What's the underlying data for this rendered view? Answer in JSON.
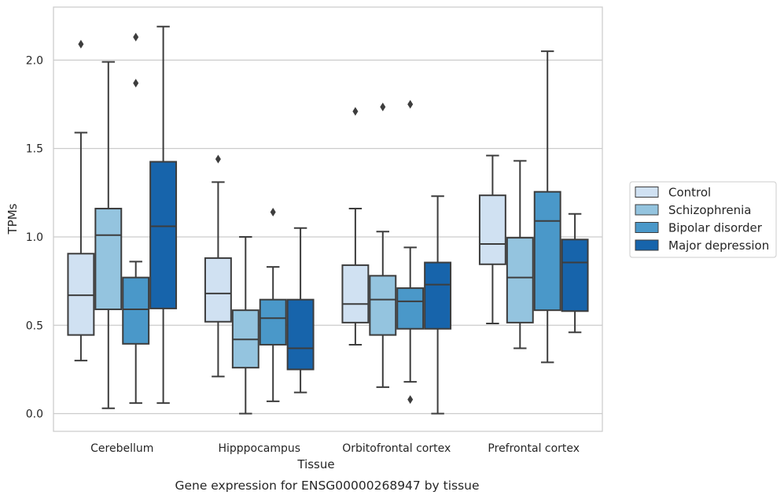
{
  "caption": "Gene expression for ENSG00000268947 by tissue",
  "chart_data": {
    "type": "box",
    "title": "",
    "xlabel": "Tissue",
    "ylabel": "TPMs",
    "ylim": [
      -0.1,
      2.3
    ],
    "yticks": [
      "0.0",
      "0.5",
      "1.0",
      "1.5",
      "2.0"
    ],
    "grid": "horizontal",
    "legend_position": "right",
    "categories": [
      "Cerebellum",
      "Hipppocampus",
      "Orbitofrontal cortex",
      "Prefrontal cortex"
    ],
    "series": [
      {
        "name": "Control",
        "color": "#d0e1f2",
        "boxes": [
          {
            "whisker_low": 0.3,
            "q1": 0.445,
            "median": 0.67,
            "q3": 0.905,
            "whisker_high": 1.59,
            "outliers": [
              2.09
            ]
          },
          {
            "whisker_low": 0.21,
            "q1": 0.52,
            "median": 0.68,
            "q3": 0.88,
            "whisker_high": 1.31,
            "outliers": [
              1.44
            ]
          },
          {
            "whisker_low": 0.39,
            "q1": 0.515,
            "median": 0.62,
            "q3": 0.84,
            "whisker_high": 1.16,
            "outliers": [
              1.71
            ]
          },
          {
            "whisker_low": 0.51,
            "q1": 0.845,
            "median": 0.96,
            "q3": 1.235,
            "whisker_high": 1.46,
            "outliers": []
          }
        ]
      },
      {
        "name": "Schizophrenia",
        "color": "#94c4df",
        "boxes": [
          {
            "whisker_low": 0.03,
            "q1": 0.59,
            "median": 1.01,
            "q3": 1.16,
            "whisker_high": 1.99,
            "outliers": []
          },
          {
            "whisker_low": 0.0,
            "q1": 0.26,
            "median": 0.42,
            "q3": 0.585,
            "whisker_high": 1.0,
            "outliers": []
          },
          {
            "whisker_low": 0.15,
            "q1": 0.445,
            "median": 0.645,
            "q3": 0.78,
            "whisker_high": 1.03,
            "outliers": [
              1.735
            ]
          },
          {
            "whisker_low": 0.37,
            "q1": 0.515,
            "median": 0.77,
            "q3": 0.995,
            "whisker_high": 1.43,
            "outliers": []
          }
        ]
      },
      {
        "name": "Bipolar disorder",
        "color": "#4a98c9",
        "boxes": [
          {
            "whisker_low": 0.06,
            "q1": 0.395,
            "median": 0.59,
            "q3": 0.77,
            "whisker_high": 0.86,
            "outliers": [
              1.87,
              2.13
            ]
          },
          {
            "whisker_low": 0.07,
            "q1": 0.39,
            "median": 0.54,
            "q3": 0.645,
            "whisker_high": 0.83,
            "outliers": [
              1.14
            ]
          },
          {
            "whisker_low": 0.18,
            "q1": 0.48,
            "median": 0.635,
            "q3": 0.71,
            "whisker_high": 0.94,
            "outliers": [
              0.08,
              1.75
            ]
          },
          {
            "whisker_low": 0.29,
            "q1": 0.585,
            "median": 1.09,
            "q3": 1.255,
            "whisker_high": 2.05,
            "outliers": []
          }
        ]
      },
      {
        "name": "Major depression",
        "color": "#1764ab",
        "boxes": [
          {
            "whisker_low": 0.06,
            "q1": 0.595,
            "median": 1.06,
            "q3": 1.425,
            "whisker_high": 2.19,
            "outliers": []
          },
          {
            "whisker_low": 0.12,
            "q1": 0.25,
            "median": 0.37,
            "q3": 0.645,
            "whisker_high": 1.05,
            "outliers": []
          },
          {
            "whisker_low": 0.0,
            "q1": 0.48,
            "median": 0.73,
            "q3": 0.855,
            "whisker_high": 1.23,
            "outliers": []
          },
          {
            "whisker_low": 0.46,
            "q1": 0.58,
            "median": 0.855,
            "q3": 0.985,
            "whisker_high": 1.13,
            "outliers": []
          }
        ]
      }
    ]
  }
}
